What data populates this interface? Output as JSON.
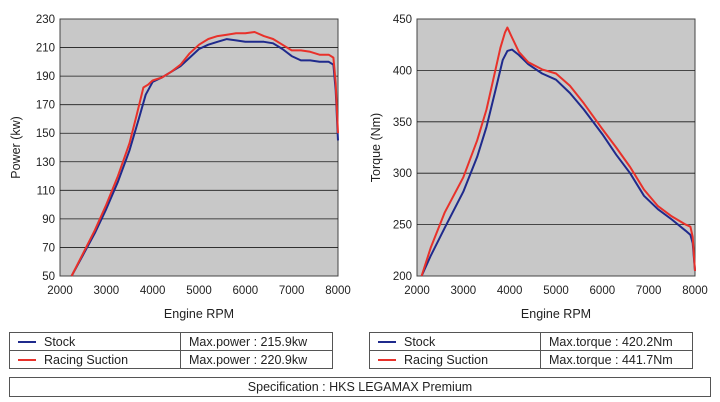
{
  "chart_data": [
    {
      "type": "line",
      "id": "power",
      "title": "",
      "xlabel": "Engine RPM",
      "ylabel": "Power (kw)",
      "xlim": [
        2000,
        8000
      ],
      "ylim": [
        50,
        230
      ],
      "xticks": [
        2000,
        3000,
        4000,
        5000,
        6000,
        7000,
        8000
      ],
      "yticks": [
        50,
        70,
        90,
        110,
        130,
        150,
        170,
        190,
        210,
        230
      ],
      "grid": true,
      "series": [
        {
          "name": "Stock",
          "color": "#1f2a8c",
          "x": [
            2250,
            2500,
            2750,
            3000,
            3250,
            3500,
            3700,
            3850,
            4000,
            4200,
            4400,
            4600,
            4800,
            5000,
            5200,
            5400,
            5600,
            5800,
            6000,
            6200,
            6400,
            6600,
            6800,
            7000,
            7200,
            7400,
            7600,
            7800,
            7900,
            7950,
            8000
          ],
          "y": [
            50,
            65,
            80,
            97,
            116,
            138,
            160,
            177,
            186,
            189,
            193,
            197,
            203,
            209,
            212,
            214,
            215.9,
            215,
            214,
            214,
            214,
            213,
            209,
            204,
            201,
            201,
            200,
            200,
            198,
            180,
            145
          ]
        },
        {
          "name": "Racing Suction",
          "color": "#e8312a",
          "x": [
            2250,
            2500,
            2750,
            3000,
            3250,
            3500,
            3650,
            3800,
            3900,
            4000,
            4200,
            4400,
            4600,
            4800,
            5000,
            5200,
            5400,
            5600,
            5800,
            6000,
            6200,
            6400,
            6600,
            6800,
            7000,
            7200,
            7400,
            7600,
            7800,
            7900,
            7950,
            8000
          ],
          "y": [
            50,
            66,
            82,
            100,
            120,
            143,
            162,
            182,
            184,
            187,
            189,
            193,
            198,
            206,
            212,
            216,
            218,
            219,
            220,
            220,
            220.9,
            218,
            216,
            212,
            208,
            208,
            207,
            205,
            205,
            203,
            185,
            150
          ]
        }
      ],
      "legend": [
        {
          "name": "Stock",
          "value": "Max.power : 215.9kw"
        },
        {
          "name": "Racing Suction",
          "value": "Max.power : 220.9kw"
        }
      ]
    },
    {
      "type": "line",
      "id": "torque",
      "title": "",
      "xlabel": "Engine RPM",
      "ylabel": "Torque (Nm)",
      "xlim": [
        2000,
        8000
      ],
      "ylim": [
        200,
        450
      ],
      "xticks": [
        2000,
        3000,
        4000,
        5000,
        6000,
        7000,
        8000
      ],
      "yticks": [
        200,
        250,
        300,
        350,
        400,
        450
      ],
      "grid": true,
      "series": [
        {
          "name": "Stock",
          "color": "#1f2a8c",
          "x": [
            2100,
            2300,
            2600,
            3000,
            3300,
            3500,
            3700,
            3850,
            3950,
            4050,
            4200,
            4400,
            4700,
            5000,
            5300,
            5600,
            6000,
            6300,
            6600,
            6900,
            7200,
            7500,
            7800,
            7900,
            7950,
            8000
          ],
          "y": [
            200,
            220,
            247,
            282,
            316,
            345,
            382,
            410,
            419,
            420.2,
            415,
            406,
            397,
            391,
            378,
            362,
            338,
            318,
            300,
            278,
            265,
            255,
            244,
            240,
            232,
            205
          ]
        },
        {
          "name": "Racing Suction",
          "color": "#e8312a",
          "x": [
            2100,
            2300,
            2600,
            3000,
            3300,
            3500,
            3700,
            3800,
            3900,
            3950,
            4050,
            4200,
            4400,
            4700,
            5000,
            5300,
            5600,
            6000,
            6300,
            6600,
            6900,
            7200,
            7500,
            7800,
            7900,
            7950,
            8000
          ],
          "y": [
            200,
            228,
            262,
            296,
            332,
            362,
            402,
            422,
            437,
            441.7,
            432,
            418,
            408,
            401,
            397,
            385,
            368,
            343,
            325,
            306,
            284,
            268,
            258,
            250,
            248,
            238,
            205
          ]
        }
      ],
      "legend": [
        {
          "name": "Stock",
          "value": "Max.torque : 420.2Nm"
        },
        {
          "name": "Racing Suction",
          "value": "Max.torque : 441.7Nm"
        }
      ]
    }
  ],
  "footer": {
    "specification": "Specification : HKS LEGAMAX Premium"
  }
}
